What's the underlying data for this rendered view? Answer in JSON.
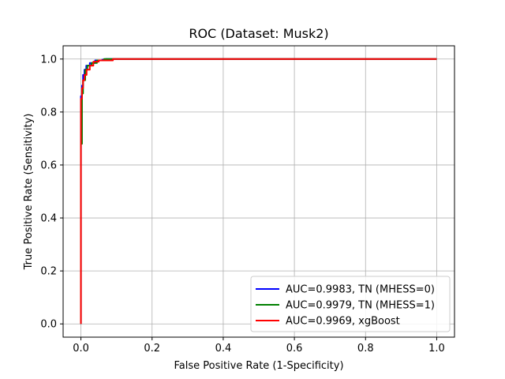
{
  "chart_data": {
    "type": "line",
    "title": "ROC (Dataset: Musk2)",
    "xlabel": "False Positive Rate (1-Specificity)",
    "ylabel": "True Positive Rate (Sensitivity)",
    "xlim": [
      -0.05,
      1.05
    ],
    "ylim": [
      -0.05,
      1.05
    ],
    "xticks": [
      "0.0",
      "0.2",
      "0.4",
      "0.6",
      "0.8",
      "1.0"
    ],
    "yticks": [
      "0.0",
      "0.2",
      "0.4",
      "0.6",
      "0.8",
      "1.0"
    ],
    "grid": true,
    "legend_position": "lower-right",
    "series": [
      {
        "name": "AUC=0.9983, TN (MHESS=0)",
        "color": "#0000ff",
        "x": [
          0.0,
          0.0,
          0.003,
          0.003,
          0.006,
          0.006,
          0.01,
          0.01,
          0.015,
          0.015,
          0.025,
          0.025,
          0.04,
          0.04,
          0.06,
          0.06,
          0.07,
          0.07,
          0.09,
          1.0
        ],
        "y": [
          0.0,
          0.86,
          0.86,
          0.9,
          0.9,
          0.94,
          0.94,
          0.96,
          0.96,
          0.975,
          0.975,
          0.985,
          0.985,
          0.995,
          0.995,
          0.998,
          0.998,
          1.0,
          1.0,
          1.0
        ]
      },
      {
        "name": "AUC=0.9979, TN (MHESS=1)",
        "color": "#008000",
        "x": [
          0.0,
          0.0,
          0.003,
          0.003,
          0.006,
          0.006,
          0.012,
          0.012,
          0.018,
          0.018,
          0.03,
          0.03,
          0.045,
          0.045,
          0.065,
          0.065,
          1.0
        ],
        "y": [
          0.0,
          0.68,
          0.68,
          0.87,
          0.87,
          0.92,
          0.92,
          0.96,
          0.96,
          0.975,
          0.975,
          0.985,
          0.985,
          0.995,
          0.995,
          1.0,
          1.0
        ]
      },
      {
        "name": "AUC=0.9969, xgBoost",
        "color": "#ff0000",
        "x": [
          0.0,
          0.0,
          0.003,
          0.003,
          0.006,
          0.006,
          0.01,
          0.01,
          0.016,
          0.016,
          0.025,
          0.025,
          0.035,
          0.035,
          0.05,
          0.05,
          0.09,
          0.09,
          1.0
        ],
        "y": [
          0.0,
          0.85,
          0.85,
          0.89,
          0.89,
          0.92,
          0.92,
          0.94,
          0.94,
          0.96,
          0.96,
          0.975,
          0.975,
          0.99,
          0.99,
          0.995,
          0.995,
          1.0,
          1.0
        ]
      }
    ]
  }
}
